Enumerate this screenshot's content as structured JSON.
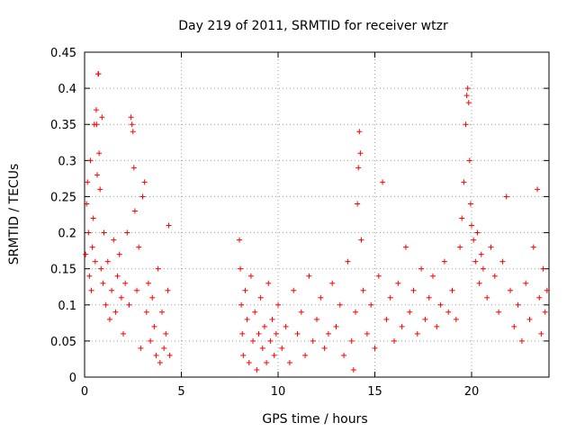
{
  "chart_data": {
    "type": "scatter",
    "title": "Day 219 of 2011, SRMTID for receiver wtzr",
    "xlabel": "GPS time / hours",
    "ylabel": "SRMTID / TECUs",
    "xlim": [
      0,
      24
    ],
    "ylim": [
      0,
      0.45
    ],
    "x_ticks": [
      0,
      5,
      10,
      15,
      20
    ],
    "x_tick_labels": [
      "0",
      "5",
      "10",
      "15",
      "20"
    ],
    "y_ticks": [
      0,
      0.05,
      0.1,
      0.15,
      0.2,
      0.25,
      0.3,
      0.35,
      0.4,
      0.45
    ],
    "y_tick_labels": [
      "0",
      "0.05",
      "0.1",
      "0.15",
      "0.2",
      "0.25",
      "0.3",
      "0.35",
      "0.4",
      "0.45"
    ],
    "grid": true,
    "marker": "+",
    "series": [
      {
        "name": "SRMTID",
        "color": "#ff0000",
        "points": [
          [
            0.05,
            0.17
          ],
          [
            0.1,
            0.24
          ],
          [
            0.15,
            0.27
          ],
          [
            0.2,
            0.2
          ],
          [
            0.25,
            0.14
          ],
          [
            0.3,
            0.3
          ],
          [
            0.35,
            0.12
          ],
          [
            0.4,
            0.18
          ],
          [
            0.45,
            0.22
          ],
          [
            0.5,
            0.35
          ],
          [
            0.55,
            0.16
          ],
          [
            0.6,
            0.37
          ],
          [
            0.62,
            0.35
          ],
          [
            0.65,
            0.28
          ],
          [
            0.7,
            0.42
          ],
          [
            0.72,
            0.42
          ],
          [
            0.75,
            0.31
          ],
          [
            0.8,
            0.26
          ],
          [
            0.85,
            0.15
          ],
          [
            0.9,
            0.36
          ],
          [
            0.95,
            0.13
          ],
          [
            1.0,
            0.2
          ],
          [
            1.1,
            0.1
          ],
          [
            1.2,
            0.16
          ],
          [
            1.3,
            0.08
          ],
          [
            1.4,
            0.12
          ],
          [
            1.5,
            0.19
          ],
          [
            1.6,
            0.09
          ],
          [
            1.7,
            0.14
          ],
          [
            1.8,
            0.17
          ],
          [
            1.9,
            0.11
          ],
          [
            2.0,
            0.06
          ],
          [
            2.1,
            0.13
          ],
          [
            2.2,
            0.2
          ],
          [
            2.3,
            0.1
          ],
          [
            2.4,
            0.36
          ],
          [
            2.45,
            0.35
          ],
          [
            2.5,
            0.34
          ],
          [
            2.55,
            0.29
          ],
          [
            2.6,
            0.23
          ],
          [
            2.7,
            0.12
          ],
          [
            2.8,
            0.18
          ],
          [
            2.9,
            0.04
          ],
          [
            3.0,
            0.25
          ],
          [
            3.1,
            0.27
          ],
          [
            3.2,
            0.09
          ],
          [
            3.3,
            0.13
          ],
          [
            3.4,
            0.05
          ],
          [
            3.5,
            0.11
          ],
          [
            3.6,
            0.07
          ],
          [
            3.7,
            0.03
          ],
          [
            3.8,
            0.15
          ],
          [
            3.9,
            0.02
          ],
          [
            4.0,
            0.09
          ],
          [
            4.1,
            0.04
          ],
          [
            4.2,
            0.06
          ],
          [
            4.3,
            0.12
          ],
          [
            4.35,
            0.21
          ],
          [
            4.4,
            0.03
          ],
          [
            8.0,
            0.19
          ],
          [
            8.05,
            0.15
          ],
          [
            8.1,
            0.1
          ],
          [
            8.15,
            0.06
          ],
          [
            8.2,
            0.03
          ],
          [
            8.3,
            0.12
          ],
          [
            8.4,
            0.08
          ],
          [
            8.5,
            0.02
          ],
          [
            8.6,
            0.14
          ],
          [
            8.7,
            0.05
          ],
          [
            8.8,
            0.09
          ],
          [
            8.9,
            0.01
          ],
          [
            9.0,
            0.06
          ],
          [
            9.1,
            0.11
          ],
          [
            9.2,
            0.04
          ],
          [
            9.3,
            0.07
          ],
          [
            9.4,
            0.02
          ],
          [
            9.5,
            0.13
          ],
          [
            9.6,
            0.05
          ],
          [
            9.7,
            0.08
          ],
          [
            9.8,
            0.03
          ],
          [
            9.9,
            0.06
          ],
          [
            10.0,
            0.1
          ],
          [
            10.2,
            0.04
          ],
          [
            10.4,
            0.07
          ],
          [
            10.6,
            0.02
          ],
          [
            10.8,
            0.12
          ],
          [
            11.0,
            0.06
          ],
          [
            11.2,
            0.09
          ],
          [
            11.4,
            0.03
          ],
          [
            11.6,
            0.14
          ],
          [
            11.8,
            0.05
          ],
          [
            12.0,
            0.08
          ],
          [
            12.2,
            0.11
          ],
          [
            12.4,
            0.04
          ],
          [
            12.6,
            0.06
          ],
          [
            12.8,
            0.13
          ],
          [
            13.0,
            0.07
          ],
          [
            13.2,
            0.1
          ],
          [
            13.4,
            0.03
          ],
          [
            13.6,
            0.16
          ],
          [
            13.8,
            0.05
          ],
          [
            13.9,
            0.01
          ],
          [
            14.0,
            0.09
          ],
          [
            14.1,
            0.24
          ],
          [
            14.15,
            0.29
          ],
          [
            14.2,
            0.34
          ],
          [
            14.25,
            0.31
          ],
          [
            14.3,
            0.19
          ],
          [
            14.4,
            0.12
          ],
          [
            14.6,
            0.06
          ],
          [
            14.8,
            0.1
          ],
          [
            15.0,
            0.04
          ],
          [
            15.2,
            0.14
          ],
          [
            15.4,
            0.27
          ],
          [
            15.6,
            0.08
          ],
          [
            15.8,
            0.11
          ],
          [
            16.0,
            0.05
          ],
          [
            16.2,
            0.13
          ],
          [
            16.4,
            0.07
          ],
          [
            16.6,
            0.18
          ],
          [
            16.8,
            0.09
          ],
          [
            17.0,
            0.12
          ],
          [
            17.2,
            0.06
          ],
          [
            17.4,
            0.15
          ],
          [
            17.6,
            0.08
          ],
          [
            17.8,
            0.11
          ],
          [
            18.0,
            0.14
          ],
          [
            18.2,
            0.07
          ],
          [
            18.4,
            0.1
          ],
          [
            18.6,
            0.16
          ],
          [
            18.8,
            0.09
          ],
          [
            19.0,
            0.12
          ],
          [
            19.2,
            0.08
          ],
          [
            19.4,
            0.18
          ],
          [
            19.5,
            0.22
          ],
          [
            19.6,
            0.27
          ],
          [
            19.7,
            0.35
          ],
          [
            19.75,
            0.39
          ],
          [
            19.8,
            0.4
          ],
          [
            19.85,
            0.38
          ],
          [
            19.9,
            0.3
          ],
          [
            19.95,
            0.24
          ],
          [
            20.0,
            0.21
          ],
          [
            20.1,
            0.19
          ],
          [
            20.2,
            0.16
          ],
          [
            20.3,
            0.2
          ],
          [
            20.4,
            0.13
          ],
          [
            20.5,
            0.17
          ],
          [
            20.6,
            0.15
          ],
          [
            20.8,
            0.11
          ],
          [
            21.0,
            0.18
          ],
          [
            21.2,
            0.14
          ],
          [
            21.4,
            0.09
          ],
          [
            21.6,
            0.16
          ],
          [
            21.8,
            0.25
          ],
          [
            22.0,
            0.12
          ],
          [
            22.2,
            0.07
          ],
          [
            22.4,
            0.1
          ],
          [
            22.6,
            0.05
          ],
          [
            22.8,
            0.13
          ],
          [
            23.0,
            0.08
          ],
          [
            23.2,
            0.18
          ],
          [
            23.4,
            0.26
          ],
          [
            23.5,
            0.11
          ],
          [
            23.6,
            0.06
          ],
          [
            23.7,
            0.15
          ],
          [
            23.8,
            0.09
          ],
          [
            23.9,
            0.12
          ]
        ]
      }
    ]
  }
}
